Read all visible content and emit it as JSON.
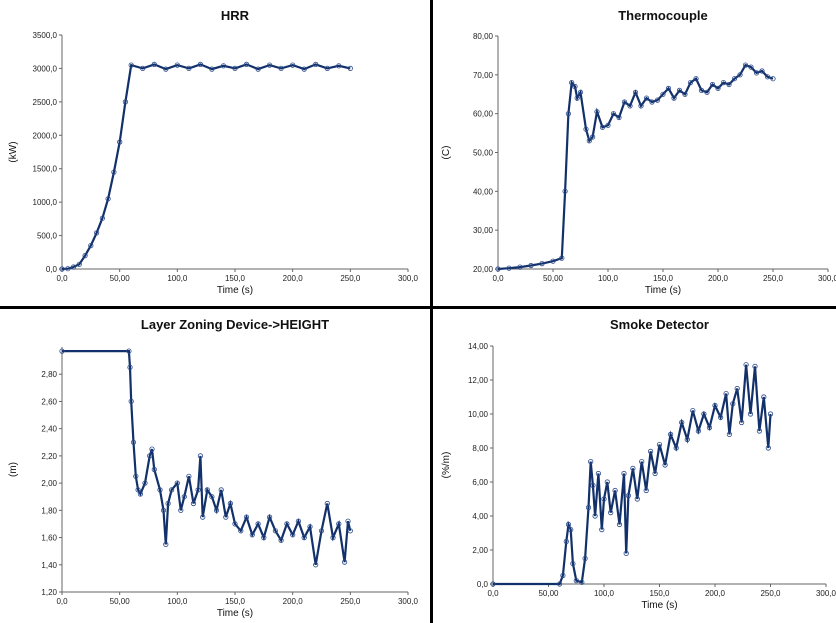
{
  "chart_data": [
    {
      "type": "scatter",
      "title": "HRR",
      "xlabel": "Time (s)",
      "ylabel": "(kW)",
      "xlim": [
        0,
        300
      ],
      "ylim": [
        0,
        3500
      ],
      "xticks": [
        "0,0",
        "50,00",
        "100,0",
        "150,0",
        "200,0",
        "250,0",
        "300,0"
      ],
      "yticks": [
        "0,0",
        "500,0",
        "1000,0",
        "1500,0",
        "2000,0",
        "2500,0",
        "3000,0",
        "3500,0"
      ],
      "series": [
        {
          "values": [
            [
              0,
              0
            ],
            [
              5,
              5
            ],
            [
              10,
              30
            ],
            [
              15,
              70
            ],
            [
              20,
              200
            ],
            [
              25,
              350
            ],
            [
              30,
              540
            ],
            [
              35,
              760
            ],
            [
              40,
              1050
            ],
            [
              45,
              1450
            ],
            [
              50,
              1900
            ],
            [
              55,
              2500
            ],
            [
              60,
              3050
            ],
            [
              70,
              3000
            ],
            [
              80,
              3060
            ],
            [
              90,
              2990
            ],
            [
              100,
              3050
            ],
            [
              110,
              3000
            ],
            [
              120,
              3060
            ],
            [
              130,
              2990
            ],
            [
              140,
              3040
            ],
            [
              150,
              3000
            ],
            [
              160,
              3060
            ],
            [
              170,
              2990
            ],
            [
              180,
              3050
            ],
            [
              190,
              3000
            ],
            [
              200,
              3050
            ],
            [
              210,
              2990
            ],
            [
              220,
              3060
            ],
            [
              230,
              3000
            ],
            [
              240,
              3040
            ],
            [
              250,
              3000
            ]
          ]
        }
      ]
    },
    {
      "type": "scatter",
      "title": "Thermocouple",
      "xlabel": "Time (s)",
      "ylabel": "(C)",
      "xlim": [
        0,
        300
      ],
      "ylim": [
        20,
        80
      ],
      "xticks": [
        "0,0",
        "50,00",
        "100,0",
        "150,0",
        "200,0",
        "250,0",
        "300,0"
      ],
      "yticks": [
        "20,00",
        "30,00",
        "40,00",
        "50,00",
        "60,00",
        "70,00",
        "80,00"
      ],
      "series": [
        {
          "values": [
            [
              0,
              20
            ],
            [
              10,
              20.2
            ],
            [
              20,
              20.5
            ],
            [
              30,
              20.9
            ],
            [
              40,
              21.4
            ],
            [
              50,
              22
            ],
            [
              58,
              22.8
            ],
            [
              61,
              40
            ],
            [
              64,
              60
            ],
            [
              67,
              68
            ],
            [
              70,
              67
            ],
            [
              72,
              64
            ],
            [
              75,
              65.5
            ],
            [
              80,
              56
            ],
            [
              83,
              53
            ],
            [
              86,
              54
            ],
            [
              90,
              60.5
            ],
            [
              95,
              56.5
            ],
            [
              100,
              57
            ],
            [
              105,
              60
            ],
            [
              110,
              59
            ],
            [
              115,
              63
            ],
            [
              120,
              62
            ],
            [
              125,
              65.5
            ],
            [
              130,
              62
            ],
            [
              135,
              64
            ],
            [
              140,
              63
            ],
            [
              145,
              63.5
            ],
            [
              150,
              65
            ],
            [
              155,
              66.5
            ],
            [
              160,
              64
            ],
            [
              165,
              66
            ],
            [
              170,
              65
            ],
            [
              175,
              68
            ],
            [
              180,
              69
            ],
            [
              185,
              66
            ],
            [
              190,
              65.5
            ],
            [
              195,
              67.5
            ],
            [
              200,
              66.5
            ],
            [
              205,
              68
            ],
            [
              210,
              67.5
            ],
            [
              215,
              69
            ],
            [
              220,
              70
            ],
            [
              225,
              72.5
            ],
            [
              230,
              72
            ],
            [
              235,
              70.5
            ],
            [
              240,
              71
            ],
            [
              245,
              69.5
            ],
            [
              250,
              69
            ]
          ]
        }
      ]
    },
    {
      "type": "scatter",
      "title": "Layer Zoning Device->HEIGHT",
      "xlabel": "Time (s)",
      "ylabel": "(m)",
      "xlim": [
        0,
        300
      ],
      "ylim": [
        1.2,
        3.0
      ],
      "xticks": [
        "0,0",
        "50,00",
        "100,0",
        "150,0",
        "200,0",
        "250,0",
        "300,0"
      ],
      "yticks": [
        "1,20",
        "1,40",
        "1,60",
        "1,80",
        "2,00",
        "2,20",
        "2,40",
        "2,60",
        "2,80"
      ],
      "series": [
        {
          "values": [
            [
              0,
              2.97
            ],
            [
              58,
              2.97
            ],
            [
              59,
              2.85
            ],
            [
              60,
              2.6
            ],
            [
              62,
              2.3
            ],
            [
              64,
              2.05
            ],
            [
              66,
              1.95
            ],
            [
              68,
              1.92
            ],
            [
              72,
              2.0
            ],
            [
              76,
              2.2
            ],
            [
              78,
              2.25
            ],
            [
              80,
              2.1
            ],
            [
              85,
              1.95
            ],
            [
              88,
              1.8
            ],
            [
              90,
              1.55
            ],
            [
              92,
              1.85
            ],
            [
              95,
              1.95
            ],
            [
              100,
              2.0
            ],
            [
              103,
              1.8
            ],
            [
              106,
              1.9
            ],
            [
              110,
              2.05
            ],
            [
              114,
              1.85
            ],
            [
              118,
              1.95
            ],
            [
              120,
              2.2
            ],
            [
              122,
              1.75
            ],
            [
              126,
              1.95
            ],
            [
              130,
              1.9
            ],
            [
              134,
              1.8
            ],
            [
              138,
              1.95
            ],
            [
              142,
              1.75
            ],
            [
              146,
              1.85
            ],
            [
              150,
              1.7
            ],
            [
              155,
              1.65
            ],
            [
              160,
              1.75
            ],
            [
              165,
              1.62
            ],
            [
              170,
              1.7
            ],
            [
              175,
              1.6
            ],
            [
              180,
              1.75
            ],
            [
              185,
              1.65
            ],
            [
              190,
              1.58
            ],
            [
              195,
              1.7
            ],
            [
              200,
              1.62
            ],
            [
              205,
              1.72
            ],
            [
              210,
              1.6
            ],
            [
              215,
              1.68
            ],
            [
              220,
              1.4
            ],
            [
              225,
              1.65
            ],
            [
              230,
              1.85
            ],
            [
              235,
              1.6
            ],
            [
              240,
              1.7
            ],
            [
              245,
              1.42
            ],
            [
              248,
              1.72
            ],
            [
              250,
              1.65
            ]
          ]
        }
      ]
    },
    {
      "type": "scatter",
      "title": "Smoke Detector",
      "xlabel": "Time (s)",
      "ylabel": "(%/m)",
      "xlim": [
        0,
        300
      ],
      "ylim": [
        0,
        14
      ],
      "xticks": [
        "0,0",
        "50,00",
        "100,0",
        "150,0",
        "200,0",
        "250,0",
        "300,0"
      ],
      "yticks": [
        "0,0",
        "2,00",
        "4,00",
        "6,00",
        "8,00",
        "10,00",
        "12,00",
        "14,00"
      ],
      "series": [
        {
          "values": [
            [
              0,
              0
            ],
            [
              60,
              0
            ],
            [
              63,
              0.5
            ],
            [
              66,
              2.5
            ],
            [
              68,
              3.5
            ],
            [
              70,
              3.2
            ],
            [
              72,
              1.2
            ],
            [
              75,
              0.2
            ],
            [
              80,
              0.1
            ],
            [
              83,
              1.5
            ],
            [
              86,
              4.5
            ],
            [
              88,
              7.2
            ],
            [
              90,
              5.8
            ],
            [
              92,
              4.0
            ],
            [
              95,
              6.5
            ],
            [
              98,
              3.2
            ],
            [
              100,
              5.0
            ],
            [
              103,
              6.0
            ],
            [
              106,
              4.2
            ],
            [
              110,
              5.5
            ],
            [
              114,
              3.5
            ],
            [
              118,
              6.5
            ],
            [
              120,
              1.8
            ],
            [
              122,
              5.2
            ],
            [
              126,
              6.8
            ],
            [
              130,
              5.0
            ],
            [
              134,
              7.2
            ],
            [
              138,
              5.5
            ],
            [
              142,
              7.8
            ],
            [
              146,
              6.5
            ],
            [
              150,
              8.2
            ],
            [
              155,
              7.0
            ],
            [
              160,
              8.8
            ],
            [
              165,
              8.0
            ],
            [
              170,
              9.5
            ],
            [
              175,
              8.5
            ],
            [
              180,
              10.2
            ],
            [
              185,
              9.0
            ],
            [
              190,
              10.0
            ],
            [
              195,
              9.2
            ],
            [
              200,
              10.5
            ],
            [
              205,
              9.8
            ],
            [
              210,
              11.2
            ],
            [
              213,
              8.8
            ],
            [
              216,
              10.6
            ],
            [
              220,
              11.5
            ],
            [
              224,
              9.5
            ],
            [
              228,
              12.9
            ],
            [
              232,
              10.0
            ],
            [
              236,
              12.8
            ],
            [
              240,
              9.0
            ],
            [
              244,
              11.0
            ],
            [
              248,
              8.0
            ],
            [
              250,
              10.0
            ]
          ]
        }
      ]
    }
  ]
}
